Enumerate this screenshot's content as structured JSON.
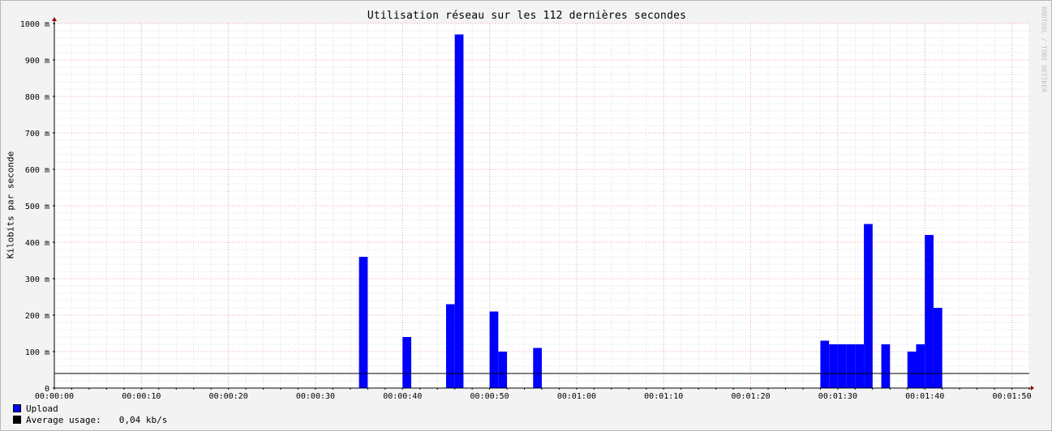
{
  "chart_data": {
    "type": "bar",
    "title": "Utilisation réseau sur les 112 dernières secondes",
    "ylabel": "Kilobits par seconde",
    "xlabel": "",
    "x_range_seconds": [
      0,
      112
    ],
    "ylim": [
      0,
      1000
    ],
    "y_ticks": [
      {
        "value": 0,
        "label": "0"
      },
      {
        "value": 100,
        "label": "100 m"
      },
      {
        "value": 200,
        "label": "200 m"
      },
      {
        "value": 300,
        "label": "300 m"
      },
      {
        "value": 400,
        "label": "400 m"
      },
      {
        "value": 500,
        "label": "500 m"
      },
      {
        "value": 600,
        "label": "600 m"
      },
      {
        "value": 700,
        "label": "700 m"
      },
      {
        "value": 800,
        "label": "800 m"
      },
      {
        "value": 900,
        "label": "900 m"
      },
      {
        "value": 1000,
        "label": "1000 m"
      }
    ],
    "x_ticks": [
      {
        "value": 0,
        "label": "00:00:00"
      },
      {
        "value": 10,
        "label": "00:00:10"
      },
      {
        "value": 20,
        "label": "00:00:20"
      },
      {
        "value": 30,
        "label": "00:00:30"
      },
      {
        "value": 40,
        "label": "00:00:40"
      },
      {
        "value": 50,
        "label": "00:00:50"
      },
      {
        "value": 60,
        "label": "00:01:00"
      },
      {
        "value": 70,
        "label": "00:01:10"
      },
      {
        "value": 80,
        "label": "00:01:20"
      },
      {
        "value": 90,
        "label": "00:01:30"
      },
      {
        "value": 100,
        "label": "00:01:40"
      },
      {
        "value": 110,
        "label": "00:01:50"
      }
    ],
    "grid": true,
    "series": [
      {
        "name": "Upload",
        "color": "#0000ff",
        "points": [
          {
            "t": 35,
            "v": 360
          },
          {
            "t": 40,
            "v": 140
          },
          {
            "t": 45,
            "v": 230
          },
          {
            "t": 46,
            "v": 970
          },
          {
            "t": 50,
            "v": 210
          },
          {
            "t": 51,
            "v": 100
          },
          {
            "t": 55,
            "v": 110
          },
          {
            "t": 88,
            "v": 130
          },
          {
            "t": 89,
            "v": 120
          },
          {
            "t": 90,
            "v": 120
          },
          {
            "t": 91,
            "v": 120
          },
          {
            "t": 92,
            "v": 120
          },
          {
            "t": 93,
            "v": 450
          },
          {
            "t": 95,
            "v": 120
          },
          {
            "t": 98,
            "v": 100
          },
          {
            "t": 99,
            "v": 120
          },
          {
            "t": 100,
            "v": 420
          },
          {
            "t": 101,
            "v": 220
          }
        ]
      }
    ],
    "average_line": {
      "value": 40,
      "color": "#000000"
    },
    "legend": [
      {
        "label": "Upload",
        "color": "#0000ff",
        "value": ""
      },
      {
        "label": "Average usage:",
        "color": "#000000",
        "value": "0,04 kb/s"
      }
    ],
    "watermark": "RRDTOOL / TOBI OETIKER"
  }
}
